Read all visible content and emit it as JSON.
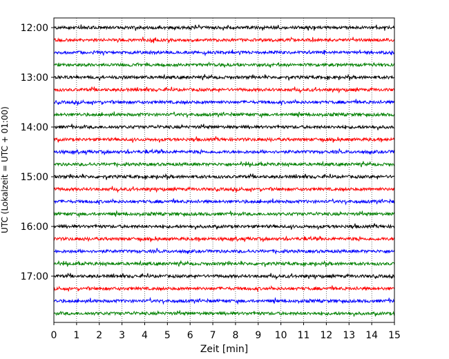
{
  "chart_data": {
    "type": "line",
    "title": "",
    "xlabel": "Zeit  [min]",
    "ylabel": "UTC (Lokalzeit = UTC + 01:00)",
    "xlim": [
      0,
      15
    ],
    "x_ticks": [
      0,
      1,
      2,
      3,
      4,
      5,
      6,
      7,
      8,
      9,
      10,
      11,
      12,
      13,
      14,
      15
    ],
    "x_tick_labels": [
      "0",
      "1",
      "2",
      "3",
      "4",
      "5",
      "6",
      "7",
      "8",
      "9",
      "10",
      "11",
      "12",
      "13",
      "14",
      "15"
    ],
    "y_tick_labels": [
      "12:00",
      "13:00",
      "14:00",
      "15:00",
      "16:00",
      "17:00"
    ],
    "y_tick_rows": [
      0,
      4,
      8,
      12,
      16,
      20
    ],
    "row_count": 24,
    "row_interval_minutes": 15,
    "x_grid": "dotted vertical lines at each minute",
    "legend": "none",
    "trace_colors": [
      "#000000",
      "#ff0000",
      "#0000ff",
      "#008000"
    ],
    "series": [
      {
        "start": "12:00",
        "color": "#000000"
      },
      {
        "start": "12:15",
        "color": "#ff0000"
      },
      {
        "start": "12:30",
        "color": "#0000ff"
      },
      {
        "start": "12:45",
        "color": "#008000"
      },
      {
        "start": "13:00",
        "color": "#000000"
      },
      {
        "start": "13:15",
        "color": "#ff0000"
      },
      {
        "start": "13:30",
        "color": "#0000ff"
      },
      {
        "start": "13:45",
        "color": "#008000"
      },
      {
        "start": "14:00",
        "color": "#000000"
      },
      {
        "start": "14:15",
        "color": "#ff0000"
      },
      {
        "start": "14:30",
        "color": "#0000ff"
      },
      {
        "start": "14:45",
        "color": "#008000"
      },
      {
        "start": "15:00",
        "color": "#000000"
      },
      {
        "start": "15:15",
        "color": "#ff0000"
      },
      {
        "start": "15:30",
        "color": "#0000ff"
      },
      {
        "start": "15:45",
        "color": "#008000"
      },
      {
        "start": "16:00",
        "color": "#000000"
      },
      {
        "start": "16:15",
        "color": "#ff0000"
      },
      {
        "start": "16:30",
        "color": "#0000ff"
      },
      {
        "start": "16:45",
        "color": "#008000"
      },
      {
        "start": "17:00",
        "color": "#000000"
      },
      {
        "start": "17:15",
        "color": "#ff0000"
      },
      {
        "start": "17:30",
        "color": "#0000ff"
      },
      {
        "start": "17:45",
        "color": "#008000"
      }
    ]
  }
}
